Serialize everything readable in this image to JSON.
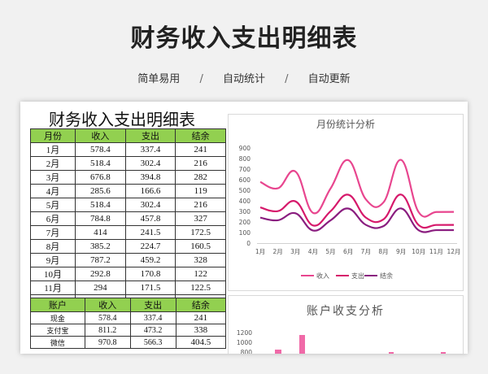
{
  "hero": {
    "title": "财务收入支出明细表"
  },
  "features": [
    "简单易用",
    "自动统计",
    "自动更新"
  ],
  "sheet": {
    "title": "财务收入支出明细表",
    "monthly_headers": [
      "月份",
      "收入",
      "支出",
      "结余"
    ],
    "monthly_rows": [
      [
        "1月",
        "578.4",
        "337.4",
        "241"
      ],
      [
        "2月",
        "518.4",
        "302.4",
        "216"
      ],
      [
        "3月",
        "676.8",
        "394.8",
        "282"
      ],
      [
        "4月",
        "285.6",
        "166.6",
        "119"
      ],
      [
        "5月",
        "518.4",
        "302.4",
        "216"
      ],
      [
        "6月",
        "784.8",
        "457.8",
        "327"
      ],
      [
        "7月",
        "414",
        "241.5",
        "172.5"
      ],
      [
        "8月",
        "385.2",
        "224.7",
        "160.5"
      ],
      [
        "9月",
        "787.2",
        "459.2",
        "328"
      ],
      [
        "10月",
        "292.8",
        "170.8",
        "122"
      ],
      [
        "11月",
        "294",
        "171.5",
        "122.5"
      ],
      [
        "12月",
        "295.2",
        "172.2",
        "123"
      ]
    ],
    "account_headers": [
      "账户",
      "收入",
      "支出",
      "结余"
    ],
    "account_rows": [
      [
        "现金",
        "578.4",
        "337.4",
        "241"
      ],
      [
        "支付宝",
        "811.2",
        "473.2",
        "338"
      ],
      [
        "微信",
        "970.8",
        "566.3",
        "404.5"
      ]
    ]
  },
  "chart_data": [
    {
      "type": "line",
      "title": "月份统计分析",
      "categories": [
        "1月",
        "2月",
        "3月",
        "4月",
        "5月",
        "6月",
        "7月",
        "8月",
        "9月",
        "10月",
        "11月",
        "12月"
      ],
      "ylim": [
        0,
        900
      ],
      "yticks": [
        "0",
        "100",
        "200",
        "300",
        "400",
        "500",
        "600",
        "700",
        "800",
        "900"
      ],
      "series": [
        {
          "name": "收入",
          "color": "#e8468f",
          "values": [
            578.4,
            518.4,
            676.8,
            285.6,
            518.4,
            784.8,
            414,
            385.2,
            787.2,
            292.8,
            294,
            295.2
          ]
        },
        {
          "name": "支出",
          "color": "#d6196b",
          "values": [
            337.4,
            302.4,
            394.8,
            166.6,
            302.4,
            457.8,
            241.5,
            224.7,
            459.2,
            170.8,
            171.5,
            172.2
          ]
        },
        {
          "name": "结余",
          "color": "#8a1d7f",
          "values": [
            241,
            216,
            282,
            119,
            216,
            327,
            172.5,
            160.5,
            328,
            122,
            122.5,
            123
          ]
        }
      ],
      "legend": "bottom",
      "grid": false
    },
    {
      "type": "bar",
      "title": "账户收支分析",
      "yticks": [
        "800",
        "1000",
        "1200"
      ],
      "bar_color": "#f06aa8"
    }
  ]
}
